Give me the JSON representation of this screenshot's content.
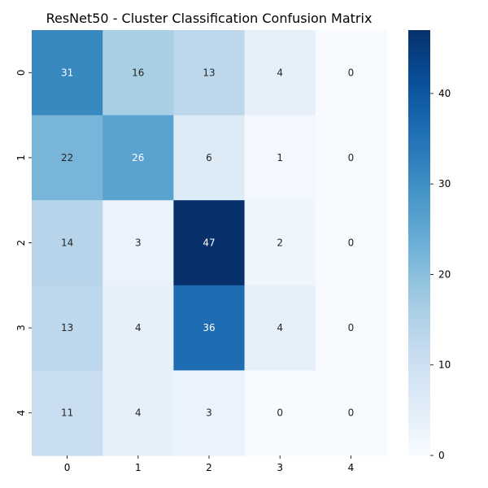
{
  "chart_data": {
    "type": "heatmap",
    "title": "ResNet50 - Cluster Classification Confusion Matrix",
    "xlabel": "",
    "ylabel": "",
    "x_ticks": [
      "0",
      "1",
      "2",
      "3",
      "4"
    ],
    "y_ticks": [
      "0",
      "1",
      "2",
      "3",
      "4"
    ],
    "matrix": [
      [
        31,
        16,
        13,
        4,
        0
      ],
      [
        22,
        26,
        6,
        1,
        0
      ],
      [
        14,
        3,
        47,
        2,
        0
      ],
      [
        13,
        4,
        36,
        4,
        0
      ],
      [
        11,
        4,
        3,
        0,
        0
      ]
    ],
    "colormap": "Blues",
    "color_range": [
      0,
      47
    ],
    "colorbar_ticks": [
      0,
      10,
      20,
      30,
      40
    ],
    "annotations": true,
    "grid": false
  }
}
